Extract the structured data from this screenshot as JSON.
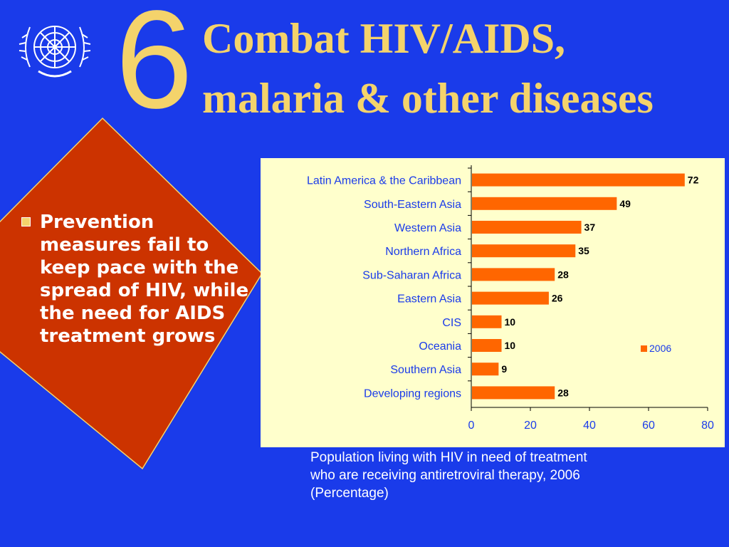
{
  "slide": {
    "goal_number": "6",
    "title_line_1": "Combat HIV/AIDS,",
    "title_line_2": "malaria & other diseases",
    "bullet": "Prevention measures fail to keep pace with the spread of HIV, while the need for AIDS treatment grows",
    "caption": "Population living with HIV in need of treatment\nwho are receiving antiretroviral therapy, 2006\n(Percentage)"
  },
  "colors": {
    "background": "#1a3bea",
    "title": "#f4d36b",
    "diamond": "#cc3300",
    "chart_panel": "#ffffcc",
    "bar": "#ff6600",
    "category_text": "#1a3bea"
  },
  "icons": {
    "logo": "un-emblem-icon",
    "bullet": "square-bullet-icon"
  },
  "chart_data": {
    "type": "bar",
    "orientation": "horizontal",
    "categories": [
      "Latin America & the Caribbean",
      "South-Eastern Asia",
      "Western Asia",
      "Northern Africa",
      "Sub-Saharan Africa",
      "Eastern Asia",
      "CIS",
      "Oceania",
      "Southern Asia",
      "Developing regions"
    ],
    "series": [
      {
        "name": "2006",
        "values": [
          72,
          49,
          37,
          35,
          28,
          26,
          10,
          10,
          9,
          28
        ]
      }
    ],
    "xlim": [
      0,
      80
    ],
    "xticks": [
      "0",
      "20",
      "40",
      "60",
      "80"
    ],
    "data_labels": true,
    "legend": "right",
    "grid": false
  }
}
